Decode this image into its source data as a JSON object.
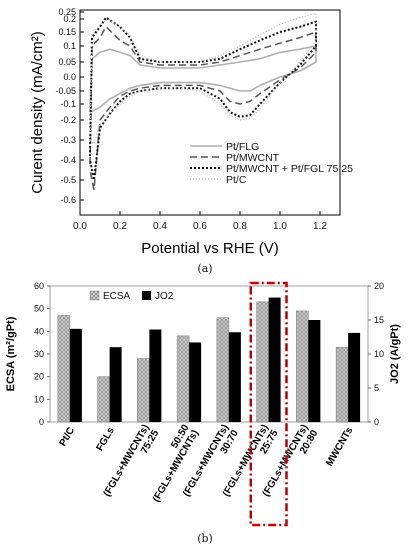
{
  "panel_a": {
    "caption": "(a)"
  },
  "panel_b": {
    "caption": "(b)"
  },
  "chart_data": [
    {
      "type": "line",
      "xlabel": "Potential vs RHE (V)",
      "ylabel": "Curent density (mA/cm²)",
      "xlim": [
        0.0,
        1.3
      ],
      "ylim": [
        -0.65,
        0.27
      ],
      "xticks": [
        "0.0",
        "0.2",
        "0.4",
        "0.6",
        "0.8",
        "1.0",
        "1.2"
      ],
      "yticks": [
        "0.25",
        "0.2",
        "0.15",
        "0.1",
        "0.05",
        "0.0",
        "-0.05",
        "-0.1",
        "-0.2",
        "-0.3",
        "-0.4",
        "-0.5",
        "-0.6"
      ],
      "ytick_values": [
        0.25,
        0.2,
        0.15,
        0.1,
        0.05,
        0.0,
        -0.05,
        -0.1,
        -0.2,
        -0.3,
        -0.4,
        -0.5,
        -0.6
      ],
      "ytick_pixels_note": "non-uniform axis as printed",
      "legend_position": "bottom-right",
      "series": [
        {
          "name": "Pt/FLG",
          "color": "#b0b0b0",
          "dash": "solid",
          "x": [
            0.05,
            0.06,
            0.1,
            0.15,
            0.2,
            0.25,
            0.3,
            0.4,
            0.5,
            0.6,
            0.7,
            0.8,
            0.9,
            1.0,
            1.1,
            1.18,
            1.18,
            1.1,
            1.0,
            0.9,
            0.85,
            0.8,
            0.75,
            0.7,
            0.6,
            0.5,
            0.4,
            0.3,
            0.25,
            0.2,
            0.15,
            0.1,
            0.07,
            0.05
          ],
          "y": [
            -0.15,
            0.06,
            0.08,
            0.09,
            0.08,
            0.07,
            0.04,
            0.03,
            0.03,
            0.03,
            0.04,
            0.05,
            0.06,
            0.08,
            0.09,
            0.1,
            0.05,
            0.02,
            0.0,
            -0.03,
            -0.05,
            -0.05,
            -0.04,
            -0.03,
            -0.02,
            -0.02,
            -0.02,
            -0.03,
            -0.04,
            -0.06,
            -0.08,
            -0.12,
            -0.14,
            -0.15
          ]
        },
        {
          "name": "Pt/MWCNT",
          "color": "#555555",
          "dash": "dashed",
          "x": [
            0.05,
            0.06,
            0.1,
            0.13,
            0.2,
            0.25,
            0.3,
            0.4,
            0.5,
            0.6,
            0.7,
            0.8,
            0.9,
            1.0,
            1.1,
            1.18,
            1.18,
            1.1,
            1.0,
            0.9,
            0.85,
            0.8,
            0.75,
            0.7,
            0.6,
            0.5,
            0.4,
            0.3,
            0.25,
            0.2,
            0.15,
            0.1,
            0.07,
            0.05
          ],
          "y": [
            -0.42,
            0.1,
            0.13,
            0.17,
            0.12,
            0.1,
            0.05,
            0.04,
            0.04,
            0.04,
            0.05,
            0.07,
            0.09,
            0.11,
            0.13,
            0.15,
            0.08,
            0.03,
            -0.01,
            -0.06,
            -0.09,
            -0.1,
            -0.09,
            -0.05,
            -0.03,
            -0.03,
            -0.03,
            -0.04,
            -0.05,
            -0.07,
            -0.12,
            -0.2,
            -0.55,
            -0.45
          ]
        },
        {
          "name": "Pt/MWCNT + Pt/FGL 75:25",
          "color": "#111111",
          "dash": "dotted",
          "x": [
            0.05,
            0.06,
            0.1,
            0.13,
            0.2,
            0.25,
            0.3,
            0.4,
            0.5,
            0.6,
            0.7,
            0.8,
            0.9,
            1.0,
            1.1,
            1.18,
            1.18,
            1.1,
            1.0,
            0.9,
            0.85,
            0.8,
            0.75,
            0.7,
            0.6,
            0.5,
            0.4,
            0.3,
            0.25,
            0.2,
            0.15,
            0.1,
            0.07,
            0.05
          ],
          "y": [
            -0.38,
            0.13,
            0.17,
            0.21,
            0.17,
            0.13,
            0.06,
            0.05,
            0.05,
            0.05,
            0.06,
            0.09,
            0.12,
            0.15,
            0.17,
            0.19,
            0.1,
            0.04,
            -0.02,
            -0.1,
            -0.17,
            -0.18,
            -0.15,
            -0.08,
            -0.04,
            -0.04,
            -0.04,
            -0.05,
            -0.06,
            -0.09,
            -0.16,
            -0.24,
            -0.5,
            -0.4
          ]
        },
        {
          "name": "Pt/C",
          "color": "#bbbbbb",
          "dash": "fine-dotted",
          "x": [
            0.05,
            0.06,
            0.1,
            0.14,
            0.2,
            0.25,
            0.3,
            0.4,
            0.5,
            0.6,
            0.7,
            0.8,
            0.9,
            1.0,
            1.1,
            1.18,
            1.18,
            1.1,
            1.0,
            0.9,
            0.85,
            0.8,
            0.75,
            0.7,
            0.6,
            0.5,
            0.4,
            0.3,
            0.25,
            0.2,
            0.15,
            0.1,
            0.07,
            0.05
          ],
          "y": [
            -0.3,
            0.14,
            0.18,
            0.2,
            0.17,
            0.14,
            0.07,
            0.05,
            0.05,
            0.05,
            0.07,
            0.1,
            0.14,
            0.18,
            0.21,
            0.24,
            0.12,
            0.05,
            -0.02,
            -0.13,
            -0.19,
            -0.2,
            -0.17,
            -0.1,
            -0.05,
            -0.04,
            -0.04,
            -0.05,
            -0.07,
            -0.1,
            -0.16,
            -0.22,
            -0.32,
            -0.3
          ]
        }
      ]
    },
    {
      "type": "bar",
      "ylabel": "ECSA (m²/gPt)",
      "y2label": "JO2 (A/gPt)",
      "ylim": [
        0,
        60
      ],
      "y2lim": [
        0,
        20
      ],
      "yticks": [
        "0",
        "10",
        "20",
        "30",
        "40",
        "50",
        "60"
      ],
      "y2ticks": [
        "0",
        "5",
        "10",
        "15",
        "20"
      ],
      "legend_position": "top-left",
      "categories": [
        "Pt/C",
        "FGLs",
        "(FGLs+MWCNTs)\n75:25",
        "(FGLs+MWCNTs)\n50:50",
        "(FGLs+MWCNTs)\n30:70",
        "(FGLs+MWCNTs)\n25:75",
        "(FGLs+MWCNTs)\n20:80",
        "MWCNTs"
      ],
      "category_lines": [
        [
          "Pt/C"
        ],
        [
          "FGLs"
        ],
        [
          "(FGLs+MWCNTs)",
          "75:25"
        ],
        [
          "50:50",
          "(FGLs+MWCNTs)"
        ],
        [
          "(FGLs+MWCNTs)",
          "30:70"
        ],
        [
          "(FGLs+MWCNTs)",
          "25:75"
        ],
        [
          "(FGLs+MWCNTs)",
          "20:80"
        ],
        [
          "MWCNTs"
        ]
      ],
      "highlight_index": 5,
      "highlight_color": "#c00000",
      "series": [
        {
          "name": "ECSA",
          "axis": "left",
          "color": "#bfbfbf",
          "pattern": "crosshatch",
          "values": [
            47,
            20,
            28,
            38,
            46,
            53,
            49,
            33
          ]
        },
        {
          "name": "JO2",
          "axis": "right",
          "color": "#000000",
          "pattern": "solid",
          "values": [
            13.7,
            11.0,
            13.6,
            11.7,
            13.2,
            18.3,
            15.0,
            13.1
          ]
        }
      ]
    }
  ]
}
